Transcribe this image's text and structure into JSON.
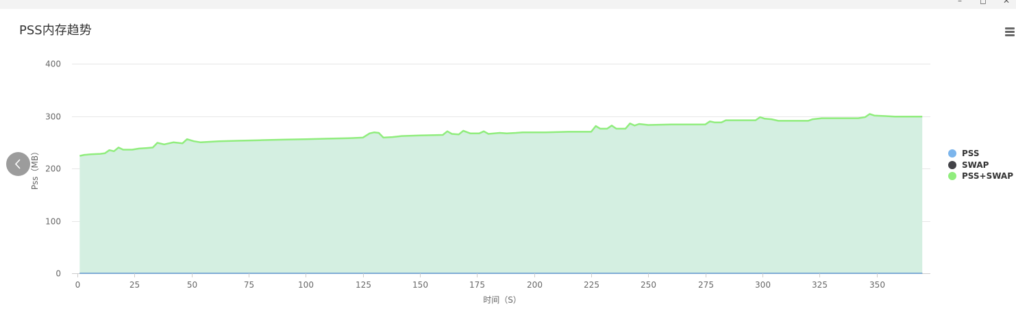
{
  "window": {
    "minimize_glyph": "–",
    "maximize_glyph": "◻",
    "close_glyph": "✕"
  },
  "chart_data": {
    "type": "area",
    "title": "PSS内存趋势",
    "xlabel": "时间（S）",
    "ylabel": "Pss（MB）",
    "xlim": [
      0,
      372
    ],
    "ylim": [
      0,
      400
    ],
    "xticks": [
      0,
      25,
      50,
      75,
      100,
      125,
      150,
      175,
      200,
      225,
      250,
      275,
      300,
      325,
      350
    ],
    "yticks": [
      0,
      100,
      200,
      300,
      400
    ],
    "grid": true,
    "legend_position": "right",
    "series": [
      {
        "name": "PSS",
        "color": "#7cb5ec",
        "style": "line",
        "points": [
          [
            1,
            0
          ],
          [
            370,
            0
          ]
        ]
      },
      {
        "name": "SWAP",
        "color": "#434348",
        "style": "line",
        "points": [
          [
            1,
            0
          ],
          [
            370,
            0
          ]
        ]
      },
      {
        "name": "PSS+SWAP",
        "color": "#90ed7d",
        "fill": "#d4efe1",
        "style": "area",
        "points": [
          [
            1,
            224
          ],
          [
            3,
            226
          ],
          [
            6,
            227
          ],
          [
            10,
            228
          ],
          [
            12,
            229
          ],
          [
            14,
            235
          ],
          [
            16,
            233
          ],
          [
            18,
            240
          ],
          [
            20,
            236
          ],
          [
            24,
            236
          ],
          [
            27,
            238
          ],
          [
            30,
            239
          ],
          [
            33,
            240
          ],
          [
            35,
            249
          ],
          [
            38,
            246
          ],
          [
            42,
            250
          ],
          [
            46,
            248
          ],
          [
            48,
            256
          ],
          [
            51,
            252
          ],
          [
            54,
            250
          ],
          [
            58,
            251
          ],
          [
            62,
            252
          ],
          [
            70,
            253
          ],
          [
            80,
            254
          ],
          [
            90,
            255
          ],
          [
            100,
            256
          ],
          [
            110,
            257
          ],
          [
            120,
            258
          ],
          [
            125,
            259
          ],
          [
            128,
            267
          ],
          [
            130,
            269
          ],
          [
            132,
            268
          ],
          [
            134,
            259
          ],
          [
            138,
            260
          ],
          [
            142,
            262
          ],
          [
            150,
            263
          ],
          [
            160,
            264
          ],
          [
            162,
            271
          ],
          [
            164,
            266
          ],
          [
            167,
            265
          ],
          [
            169,
            272
          ],
          [
            172,
            267
          ],
          [
            176,
            267
          ],
          [
            178,
            271
          ],
          [
            180,
            266
          ],
          [
            185,
            268
          ],
          [
            188,
            267
          ],
          [
            192,
            268
          ],
          [
            195,
            269
          ],
          [
            205,
            269
          ],
          [
            215,
            270
          ],
          [
            225,
            270
          ],
          [
            227,
            281
          ],
          [
            229,
            276
          ],
          [
            232,
            276
          ],
          [
            234,
            282
          ],
          [
            236,
            276
          ],
          [
            240,
            276
          ],
          [
            242,
            286
          ],
          [
            244,
            282
          ],
          [
            246,
            285
          ],
          [
            250,
            283
          ],
          [
            260,
            284
          ],
          [
            270,
            284
          ],
          [
            275,
            284
          ],
          [
            277,
            290
          ],
          [
            279,
            288
          ],
          [
            282,
            288
          ],
          [
            284,
            292
          ],
          [
            290,
            292
          ],
          [
            297,
            292
          ],
          [
            299,
            298
          ],
          [
            301,
            295
          ],
          [
            304,
            294
          ],
          [
            307,
            291
          ],
          [
            312,
            291
          ],
          [
            320,
            291
          ],
          [
            322,
            294
          ],
          [
            326,
            296
          ],
          [
            332,
            296
          ],
          [
            342,
            296
          ],
          [
            345,
            298
          ],
          [
            347,
            304
          ],
          [
            349,
            301
          ],
          [
            354,
            300
          ],
          [
            358,
            299
          ],
          [
            364,
            299
          ],
          [
            370,
            299
          ]
        ]
      }
    ]
  }
}
